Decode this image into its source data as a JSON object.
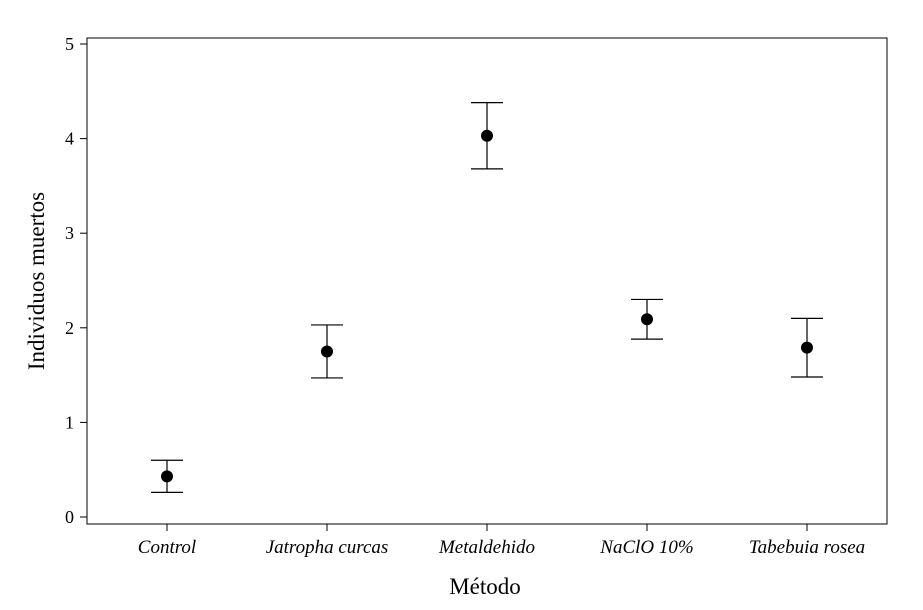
{
  "chart_data": {
    "type": "scatter",
    "title": "",
    "xlabel": "Método",
    "ylabel": "Individuos muertos",
    "ylim": [
      0,
      5
    ],
    "yticks": [
      0,
      1,
      2,
      3,
      4,
      5
    ],
    "grid": false,
    "legend": "none",
    "categories": [
      "Control",
      "Jatropha curcas",
      "Metaldehido",
      "NaClO 10%",
      "Tabebuia rosea"
    ],
    "series": [
      {
        "name": "Individuos muertos",
        "means": [
          0.43,
          1.75,
          4.03,
          2.09,
          1.79
        ],
        "lower": [
          0.26,
          1.47,
          3.68,
          1.88,
          1.48
        ],
        "upper": [
          0.6,
          2.03,
          4.38,
          2.3,
          2.1
        ]
      }
    ],
    "colors": {
      "marker": "#000000",
      "axis": "#000000",
      "background": "#ffffff"
    }
  }
}
